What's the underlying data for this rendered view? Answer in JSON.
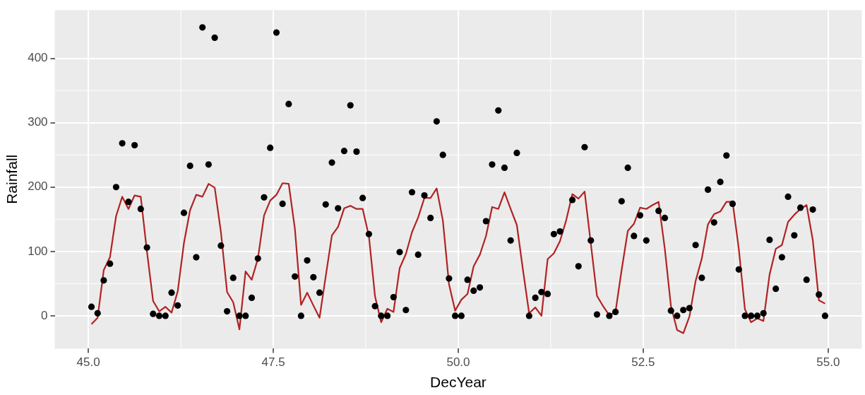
{
  "chart_data": {
    "type": "scatter",
    "xlabel": "DecYear",
    "ylabel": "Rainfall",
    "x": [
      45.042,
      45.125,
      45.208,
      45.292,
      45.375,
      45.458,
      45.542,
      45.625,
      45.708,
      45.792,
      45.875,
      45.958,
      46.042,
      46.125,
      46.208,
      46.292,
      46.375,
      46.458,
      46.542,
      46.625,
      46.708,
      46.792,
      46.875,
      46.958,
      47.042,
      47.125,
      47.208,
      47.292,
      47.375,
      47.458,
      47.542,
      47.625,
      47.708,
      47.792,
      47.875,
      47.958,
      48.042,
      48.125,
      48.208,
      48.292,
      48.375,
      48.458,
      48.542,
      48.625,
      48.708,
      48.792,
      48.875,
      48.958,
      49.042,
      49.125,
      49.208,
      49.292,
      49.375,
      49.458,
      49.542,
      49.625,
      49.708,
      49.792,
      49.875,
      49.958,
      50.042,
      50.125,
      50.208,
      50.292,
      50.375,
      50.458,
      50.542,
      50.625,
      50.708,
      50.792,
      50.875,
      50.958,
      51.042,
      51.125,
      51.208,
      51.292,
      51.375,
      51.458,
      51.542,
      51.625,
      51.708,
      51.792,
      51.875,
      51.958,
      52.042,
      52.125,
      52.208,
      52.292,
      52.375,
      52.458,
      52.542,
      52.625,
      52.708,
      52.792,
      52.875,
      52.958,
      53.042,
      53.125,
      53.208,
      53.292,
      53.375,
      53.458,
      53.542,
      53.625,
      53.708,
      53.792,
      53.875,
      53.958,
      54.042,
      54.125,
      54.208,
      54.292,
      54.375,
      54.458,
      54.542,
      54.625,
      54.708,
      54.792,
      54.875,
      54.958
    ],
    "series": [
      {
        "marker": "circle",
        "color": "#000000",
        "values": [
          14,
          4,
          55,
          81,
          200,
          268,
          177,
          265,
          166,
          106,
          3,
          0,
          0,
          36,
          16,
          160,
          233,
          91,
          448,
          235,
          432,
          109,
          7,
          59,
          0,
          0,
          28,
          89,
          184,
          261,
          440,
          174,
          329,
          61,
          0,
          86,
          60,
          36,
          173,
          238,
          167,
          256,
          327,
          255,
          183,
          127,
          15,
          0,
          0,
          29,
          99,
          9,
          192,
          95,
          187,
          152,
          302,
          250,
          58,
          0,
          0,
          56,
          39,
          44,
          147,
          235,
          319,
          230,
          117,
          253,
          null,
          0,
          28,
          37,
          34,
          127,
          131,
          null,
          180,
          77,
          262,
          117,
          2,
          null,
          0,
          6,
          178,
          230,
          124,
          156,
          117,
          null,
          163,
          152,
          8,
          0,
          9,
          12,
          110,
          59,
          196,
          145,
          208,
          249,
          174,
          72,
          0,
          0,
          0,
          4,
          118,
          42,
          91,
          185,
          125,
          168,
          56,
          165,
          33,
          0
        ]
      },
      {
        "type": "line",
        "marker": "none",
        "line_style": "solid",
        "color": "#b22222",
        "values": [
          -13,
          -3,
          71,
          91,
          155,
          185,
          166,
          187,
          185,
          100,
          23,
          7,
          14,
          5,
          38,
          113,
          164,
          188,
          185,
          205,
          199,
          130,
          37,
          21,
          -21,
          69,
          56,
          89,
          156,
          179,
          188,
          206,
          205,
          135,
          17,
          36,
          16,
          -3,
          61,
          125,
          138,
          167,
          171,
          166,
          166,
          124,
          30,
          -10,
          11,
          6,
          74,
          96,
          130,
          153,
          183,
          183,
          198,
          148,
          49,
          8,
          25,
          34,
          77,
          95,
          124,
          169,
          166,
          192,
          166,
          141,
          71,
          4,
          13,
          0,
          88,
          97,
          116,
          148,
          189,
          182,
          193,
          112,
          31,
          15,
          1,
          6,
          71,
          132,
          143,
          168,
          166,
          172,
          177,
          104,
          15,
          -22,
          -27,
          -1,
          54,
          89,
          142,
          158,
          162,
          177,
          177,
          104,
          10,
          -10,
          -4,
          -8,
          64,
          104,
          110,
          146,
          157,
          166,
          172,
          118,
          24,
          19
        ]
      }
    ],
    "xlim": [
      44.546,
      55.454
    ],
    "xticks": [
      {
        "value": 45,
        "label": "45.0"
      },
      47.5,
      {
        "value": 50,
        "label": "50.0"
      },
      52.5,
      {
        "value": 55,
        "label": "55.0"
      }
    ],
    "ylim": [
      -51,
      475
    ],
    "yticks": [
      0,
      100,
      200,
      300,
      400
    ],
    "grid": true
  }
}
